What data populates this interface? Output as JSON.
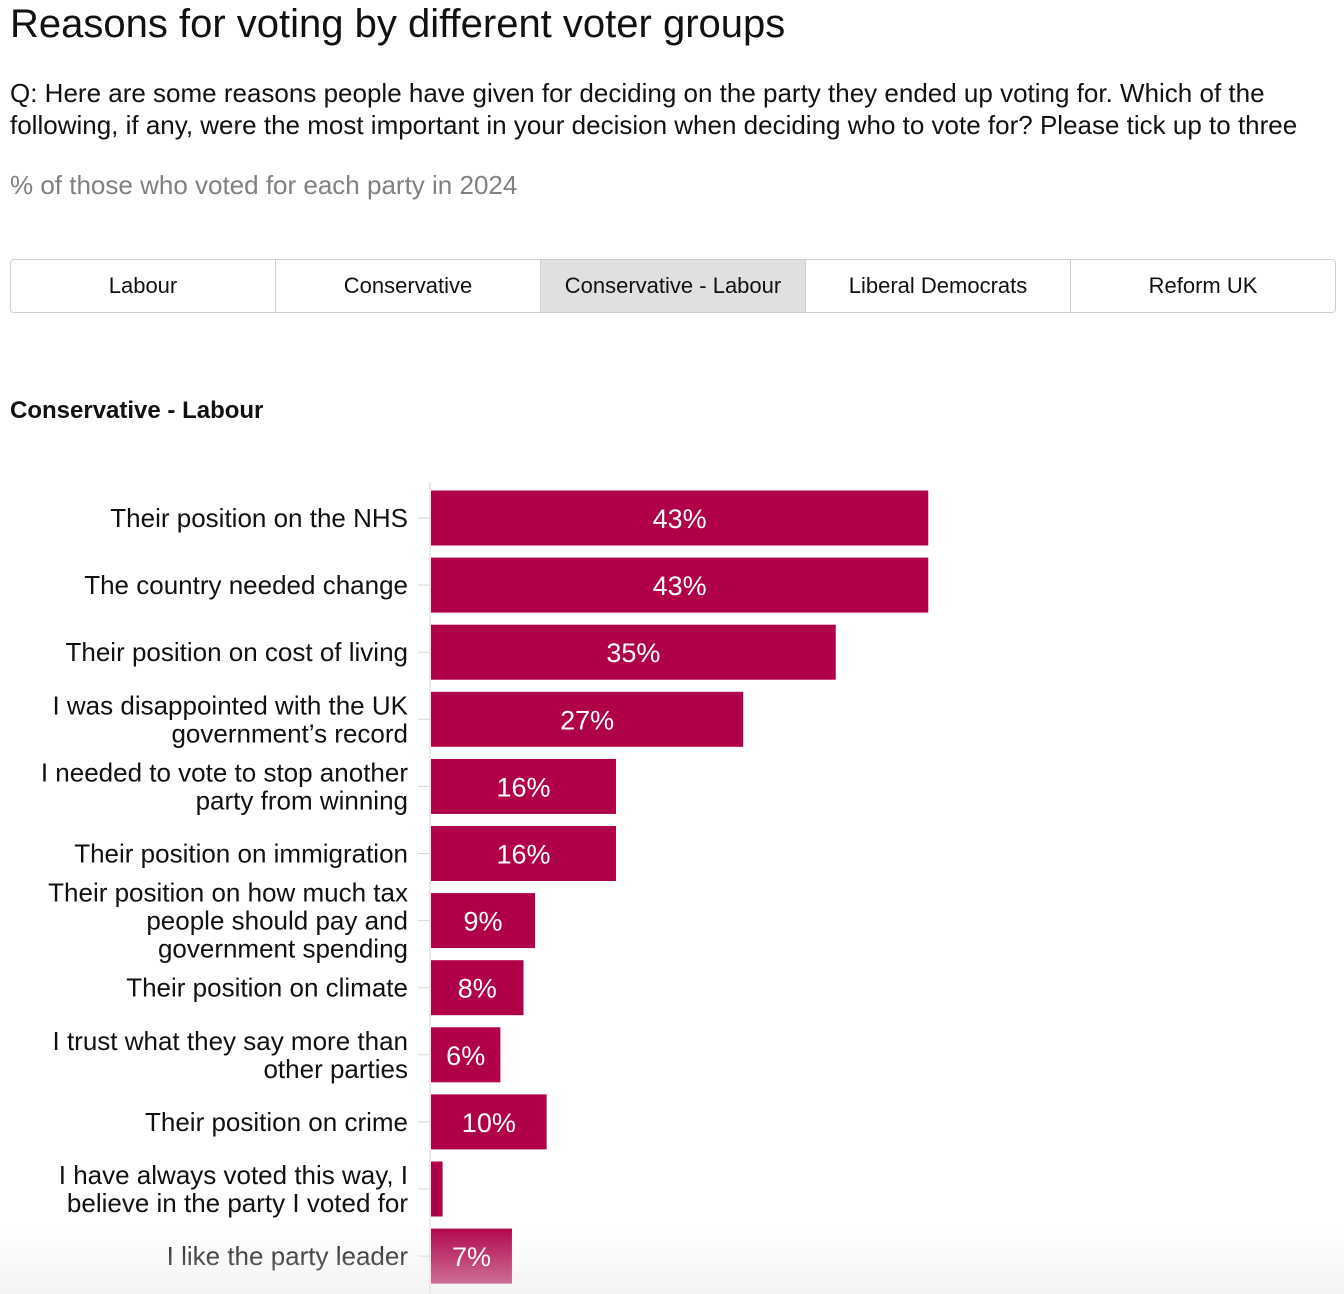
{
  "header": {
    "title": "Reasons for voting by different voter groups",
    "question": "Q: Here are some reasons people have given for deciding on the party they ended up voting for. Which of the following, if any, were the most important in your decision when deciding who to vote for? Please tick up to three",
    "subtitle": "% of those who voted for each party in 2024"
  },
  "tabs": [
    {
      "label": "Labour",
      "active": false
    },
    {
      "label": "Conservative",
      "active": false
    },
    {
      "label": "Conservative - Labour",
      "active": true
    },
    {
      "label": "Liberal Democrats",
      "active": false
    },
    {
      "label": "Reform UK",
      "active": false
    }
  ],
  "colors": {
    "bar": "#b0004a",
    "active_tab": "#e0e0e0"
  },
  "chart_data": {
    "type": "bar",
    "orientation": "horizontal",
    "title": "Conservative - Labour",
    "categories": [
      "Their position on the NHS",
      "The country needed change",
      "Their position on cost of living",
      "I was disappointed with the UK government’s record",
      "I needed to vote to stop another party from winning",
      "Their position on immigration",
      "Their position on how much tax people should pay and government spending",
      "Their position on climate",
      "I trust what they say more than other parties",
      "Their position on crime",
      "I have always voted this way, I believe in the party I voted for",
      "I like the party leader"
    ],
    "label_lines": [
      [
        "Their position on the NHS"
      ],
      [
        "The country needed change"
      ],
      [
        "Their position on cost of living"
      ],
      [
        "I was disappointed with the UK",
        "government’s record"
      ],
      [
        "I needed to vote to stop another",
        "party from winning"
      ],
      [
        "Their position on immigration"
      ],
      [
        "Their position on how much tax",
        "people should pay and",
        "government spending"
      ],
      [
        "Their position on climate"
      ],
      [
        "I trust what they say more than",
        "other parties"
      ],
      [
        "Their position on crime"
      ],
      [
        "I have always voted this way, I",
        "believe in the party I voted for"
      ],
      [
        "I like the party leader"
      ]
    ],
    "values": [
      43,
      43,
      35,
      27,
      16,
      16,
      9,
      8,
      6,
      10,
      1,
      7
    ],
    "value_labels": [
      "43%",
      "43%",
      "35%",
      "27%",
      "16%",
      "16%",
      "9%",
      "8%",
      "6%",
      "10%",
      "",
      "7%"
    ],
    "unit": "%",
    "xlim": [
      0,
      78
    ],
    "grid": false,
    "legend": "none"
  }
}
